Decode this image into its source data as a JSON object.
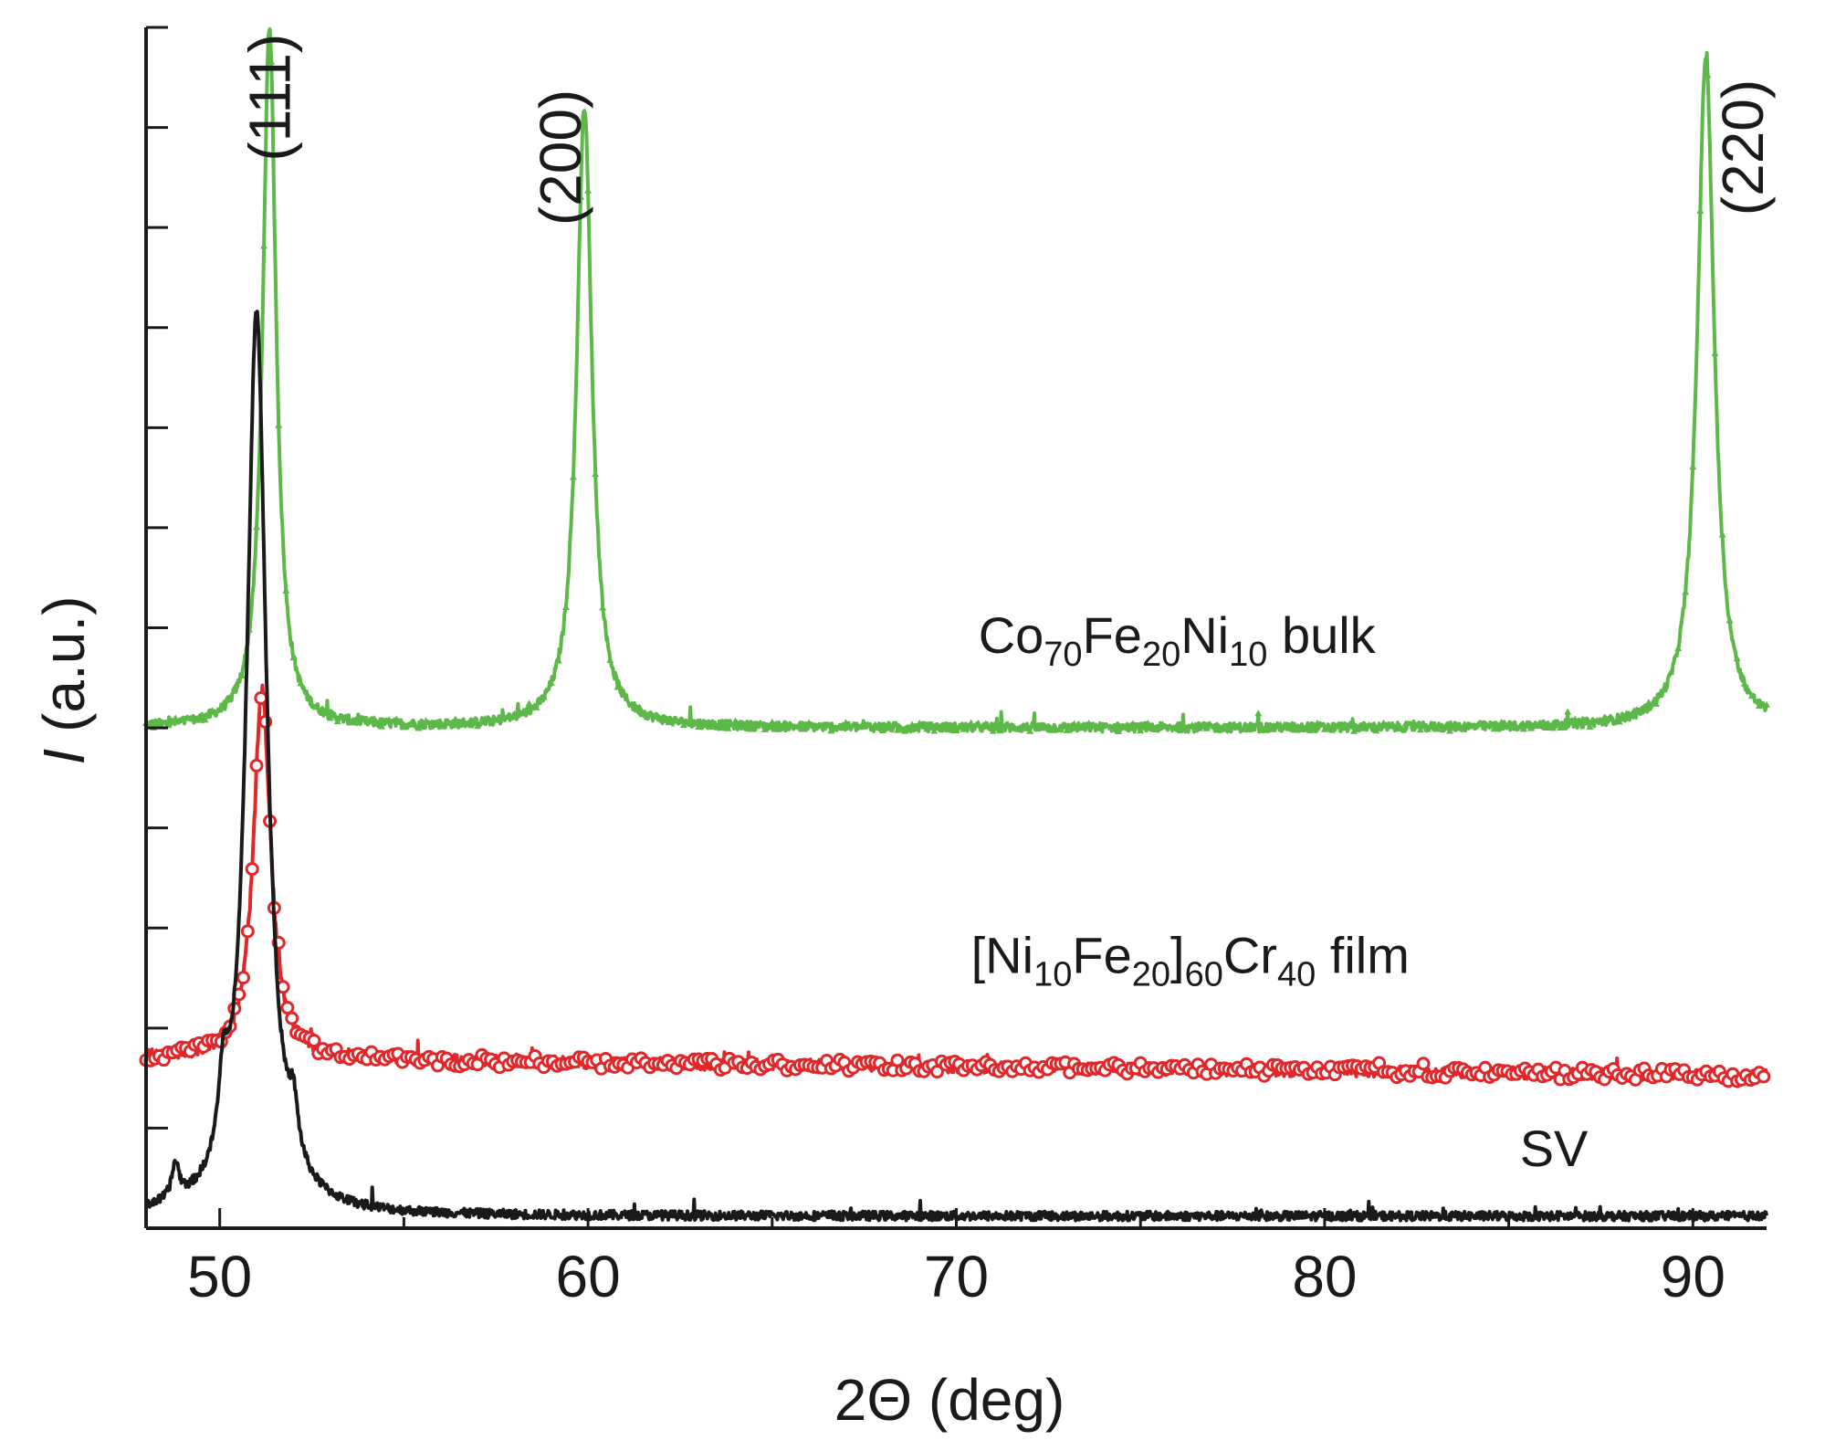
{
  "chart_data": {
    "type": "line",
    "xlabel": "2Θ (deg)",
    "ylabel": {
      "symbol": "I",
      "unit": " (a.u.)"
    },
    "xlim": [
      48,
      92
    ],
    "ylim": [
      0,
      12
    ],
    "x_ticks": [
      50,
      60,
      70,
      80,
      90
    ],
    "y_tick_count": 12,
    "grid": false,
    "legend": "none",
    "colors": {
      "green": "#5cb848",
      "red": "#e0282b",
      "black": "#1a1a1a"
    },
    "peak_labels": [
      {
        "text": "(111)",
        "x": 51.9,
        "y": 11.3
      },
      {
        "text": "(200)",
        "x": 59.8,
        "y": 10.7
      },
      {
        "text": "(220)",
        "x": 91.9,
        "y": 10.8
      }
    ],
    "series": [
      {
        "key": "green",
        "baseline": 5.0,
        "peaks": [
          {
            "x": 51.35,
            "h": 7.0,
            "w": 0.22
          },
          {
            "x": 59.9,
            "h": 6.2,
            "w": 0.25
          },
          {
            "x": 90.35,
            "h": 6.7,
            "w": 0.28
          }
        ],
        "label_parts": [
          {
            "t": "Co",
            "sub": false
          },
          {
            "t": "70",
            "sub": true
          },
          {
            "t": "Fe",
            "sub": false
          },
          {
            "t": "20",
            "sub": true
          },
          {
            "t": "Ni",
            "sub": false
          },
          {
            "t": "10",
            "sub": true
          },
          {
            "t": " bulk",
            "sub": false
          }
        ],
        "label_x": 70.6,
        "label_y": 5.75
      },
      {
        "key": "red",
        "baseline": 1.7,
        "slope": -0.004,
        "peaks": [
          {
            "x": 51.15,
            "h": 3.7,
            "w": 0.28
          }
        ],
        "label_parts": [
          {
            "t": "[Ni",
            "sub": false
          },
          {
            "t": "10",
            "sub": true
          },
          {
            "t": "Fe",
            "sub": false
          },
          {
            "t": "20",
            "sub": true
          },
          {
            "t": "]",
            "sub": false
          },
          {
            "t": "60",
            "sub": true
          },
          {
            "t": "Cr",
            "sub": false
          },
          {
            "t": "40",
            "sub": true
          },
          {
            "t": " film",
            "sub": false
          }
        ],
        "label_x": 70.4,
        "label_y": 2.55
      },
      {
        "key": "black",
        "baseline": 0.12,
        "peaks": [
          {
            "x": 51.0,
            "h": 9.0,
            "w": 0.33
          },
          {
            "x": 50.1,
            "h": 0.75,
            "w": 0.15
          },
          {
            "x": 48.8,
            "h": 0.35,
            "w": 0.12
          },
          {
            "x": 52.0,
            "h": 0.5,
            "w": 0.15
          }
        ],
        "label_parts": [
          {
            "t": "SV",
            "sub": false
          }
        ],
        "label_x": 85.3,
        "label_y": 0.62
      }
    ]
  }
}
